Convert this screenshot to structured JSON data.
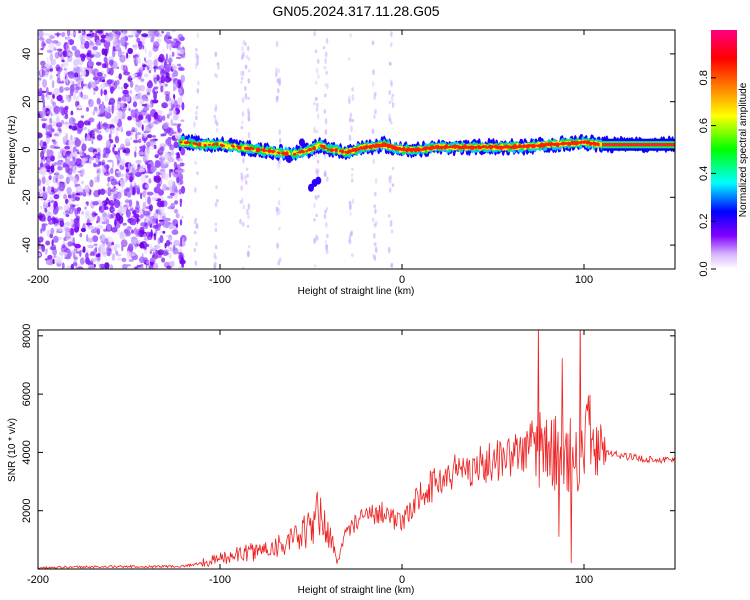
{
  "chart_data": [
    {
      "type": "heatmap",
      "title": "GN05.2024.317.11.28.G05",
      "xlabel": "Height of straight line (km)",
      "ylabel": "Frequency (Hz)",
      "xlim": [
        -200,
        150
      ],
      "ylim": [
        -50,
        50
      ],
      "x_ticks": [
        "-200",
        "-100",
        "0",
        "100"
      ],
      "y_ticks": [
        "-40",
        "-20",
        "0",
        "20",
        "40"
      ],
      "colorbar": {
        "label": "Normalized spectral amplitude",
        "range": [
          0,
          1
        ],
        "ticks": [
          "0.0",
          "0.2",
          "0.4",
          "0.6",
          "0.8"
        ],
        "colors": [
          "#ffffff",
          "#8000ff",
          "#0000ff",
          "#00ffff",
          "#00ff00",
          "#ffff00",
          "#ff8000",
          "#ff0000",
          "#ff0080"
        ]
      },
      "ridge": {
        "description_values": "dominant frequency line",
        "x": [
          -120,
          -110,
          -100,
          -90,
          -80,
          -70,
          -60,
          -50,
          -45,
          -40,
          -30,
          -20,
          -10,
          0,
          10,
          20,
          40,
          60,
          80,
          100,
          110,
          150
        ],
        "y": [
          3,
          2,
          2,
          1,
          0,
          -1,
          -2,
          0,
          2,
          0,
          -1,
          1,
          2,
          0,
          0,
          1,
          1,
          1,
          2,
          3,
          2,
          2
        ]
      },
      "noise_region": {
        "x_from": -200,
        "x_to": -120
      }
    },
    {
      "type": "line",
      "xlabel": "Height of straight line (km)",
      "ylabel": "SNR (10 * v/v)",
      "xlim": [
        -200,
        150
      ],
      "ylim": [
        0,
        8200
      ],
      "x_ticks": [
        "-200",
        "-100",
        "0",
        "100"
      ],
      "y_ticks": [
        "2000",
        "4000",
        "6000",
        "8000"
      ],
      "color": "#ee2222",
      "series": [
        {
          "x": [
            -200,
            -180,
            -160,
            -140,
            -120,
            -110,
            -100,
            -90,
            -80,
            -70,
            -60,
            -50,
            -45,
            -40,
            -35,
            -30,
            -20,
            -10,
            0,
            10,
            20,
            30,
            40,
            50,
            60,
            70,
            75,
            80,
            85,
            90,
            95,
            100,
            105,
            110,
            120,
            130,
            140,
            150
          ],
          "y": [
            50,
            70,
            80,
            80,
            100,
            200,
            350,
            500,
            600,
            800,
            950,
            1400,
            2000,
            1100,
            300,
            1400,
            1800,
            2000,
            1500,
            2600,
            3000,
            3400,
            3500,
            3700,
            3900,
            4100,
            4200,
            4050,
            3900,
            3800,
            4000,
            4300,
            4600,
            4000,
            3900,
            3800,
            3750,
            3750
          ]
        }
      ]
    }
  ]
}
